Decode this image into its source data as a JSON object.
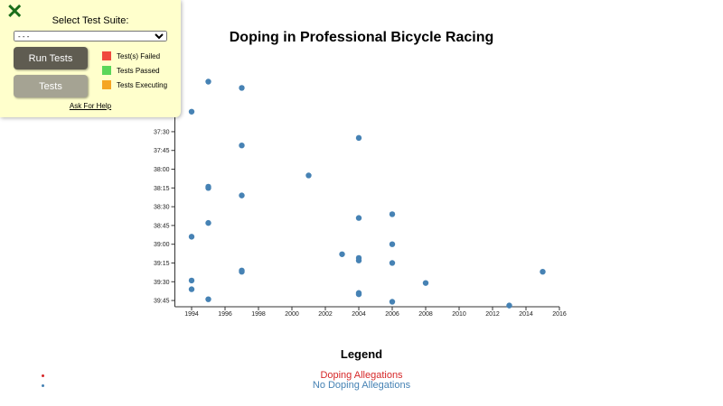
{
  "panel": {
    "close_icon": "close-x-icon",
    "select_label": "Select Test Suite:",
    "select_value": "- - -",
    "run_label": "Run Tests",
    "tests_label": "Tests",
    "legend": [
      {
        "label": "Test(s) Failed",
        "color": "#f0493e"
      },
      {
        "label": "Tests Passed",
        "color": "#5ad65a"
      },
      {
        "label": "Tests Executing",
        "color": "#f5a623"
      }
    ],
    "help_label": "Ask For Help"
  },
  "chart_data": {
    "type": "scatter",
    "title": "Doping in Professional Bicycle Racing",
    "xlabel": "",
    "ylabel": "",
    "xlim": [
      1993,
      2016
    ],
    "ylim": [
      "36:50",
      "39:50"
    ],
    "x_ticks": [
      "1994",
      "1996",
      "1998",
      "2000",
      "2002",
      "2004",
      "2006",
      "2008",
      "2010",
      "2012",
      "2014",
      "2016"
    ],
    "y_ticks": [
      "37:00",
      "37:15",
      "37:30",
      "37:45",
      "38:00",
      "38:15",
      "38:30",
      "38:45",
      "39:00",
      "39:15",
      "39:30",
      "39:45"
    ],
    "grid": false,
    "point_color": "#4682b4",
    "points": [
      {
        "x": 1995,
        "y": "36:50"
      },
      {
        "x": 1997,
        "y": "36:55"
      },
      {
        "x": 1994,
        "y": "37:14"
      },
      {
        "x": 2004,
        "y": "37:35"
      },
      {
        "x": 1997,
        "y": "37:41"
      },
      {
        "x": 2001,
        "y": "38:05"
      },
      {
        "x": 1995,
        "y": "38:14"
      },
      {
        "x": 1995,
        "y": "38:15"
      },
      {
        "x": 1997,
        "y": "38:21"
      },
      {
        "x": 2006,
        "y": "38:36"
      },
      {
        "x": 2004,
        "y": "38:39"
      },
      {
        "x": 1995,
        "y": "38:43"
      },
      {
        "x": 1994,
        "y": "38:54"
      },
      {
        "x": 2006,
        "y": "39:00"
      },
      {
        "x": 2003,
        "y": "39:08"
      },
      {
        "x": 2004,
        "y": "39:11"
      },
      {
        "x": 2004,
        "y": "39:13"
      },
      {
        "x": 2006,
        "y": "39:15"
      },
      {
        "x": 1997,
        "y": "39:21"
      },
      {
        "x": 1997,
        "y": "39:22"
      },
      {
        "x": 2015,
        "y": "39:22"
      },
      {
        "x": 1994,
        "y": "39:29"
      },
      {
        "x": 2008,
        "y": "39:31"
      },
      {
        "x": 1994,
        "y": "39:36"
      },
      {
        "x": 2004,
        "y": "39:39"
      },
      {
        "x": 2004,
        "y": "39:40"
      },
      {
        "x": 1995,
        "y": "39:44"
      },
      {
        "x": 2006,
        "y": "39:46"
      },
      {
        "x": 2013,
        "y": "39:49"
      }
    ],
    "legend": {
      "title": "Legend",
      "placement": "bottom",
      "entries": [
        {
          "label": "Doping Allegations",
          "color": "#d62728"
        },
        {
          "label": "No Doping Allegations",
          "color": "#4682b4"
        }
      ]
    }
  }
}
